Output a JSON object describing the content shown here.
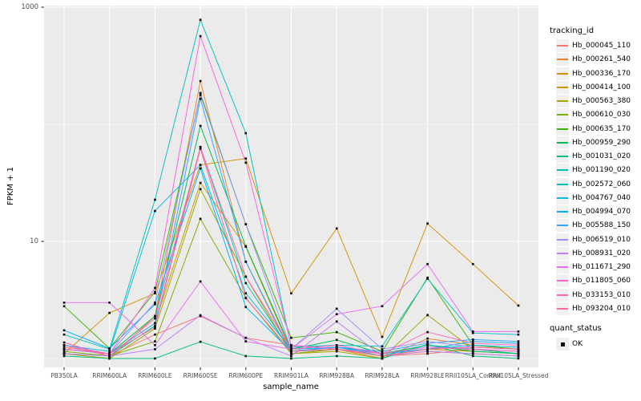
{
  "chart_data": {
    "type": "line",
    "title": "",
    "xlabel": "sample_name",
    "ylabel": "FPKM + 1",
    "y_scale": "log10",
    "ylim": [
      0.9,
      1000
    ],
    "grid": "on",
    "legend_position": "right",
    "point_marker": "small-black-square",
    "y_axis_ticks": [
      {
        "label": "1000",
        "value": 1000
      },
      {
        "label": "10",
        "value": 10
      }
    ],
    "minor_gridline_values": [
      100,
      1
    ],
    "categories": [
      "PB350LA",
      "RRIM600LA",
      "RRIM600LE",
      "RRIM600SE",
      "RRIM600PE",
      "RRIM901LA",
      "RRIM928BA",
      "RRIM928LA",
      "RRIM928LE",
      "RRII105LA_Control",
      "RRII105LA_Stressed"
    ],
    "series": [
      {
        "name": "Hb_000045_110",
        "color": "#F8766D",
        "values": [
          1.3,
          1.05,
          1.6,
          2.3,
          1.5,
          1.3,
          1.2,
          1.05,
          1.1,
          1.2,
          1.15
        ]
      },
      {
        "name": "Hb_000261_540",
        "color": "#EA8331",
        "values": [
          1.1,
          1.0,
          2.3,
          234,
          6.7,
          1.1,
          1.2,
          1.0,
          1.48,
          1.3,
          1.2
        ]
      },
      {
        "name": "Hb_000336_170",
        "color": "#D89000",
        "values": [
          1.1,
          2.45,
          3.6,
          45,
          51,
          3.6,
          12.9,
          1.53,
          14.2,
          6.4,
          2.83
        ]
      },
      {
        "name": "Hb_000414_100",
        "color": "#C59900",
        "values": [
          1.2,
          1.1,
          2.0,
          31.6,
          9.0,
          1.15,
          1.2,
          1.05,
          1.2,
          1.15,
          1.1
        ]
      },
      {
        "name": "Hb_000563_380",
        "color": "#A3A500",
        "values": [
          1.1,
          1.0,
          1.8,
          28,
          5.0,
          1.1,
          1.15,
          1.0,
          2.35,
          1.2,
          1.1
        ]
      },
      {
        "name": "Hb_000610_030",
        "color": "#7CAE00",
        "values": [
          1.15,
          1.05,
          1.4,
          15.6,
          3.3,
          1.1,
          1.2,
          1.05,
          1.15,
          1.1,
          1.05
        ]
      },
      {
        "name": "Hb_000635_170",
        "color": "#39B600",
        "values": [
          2.8,
          1.22,
          3.7,
          178,
          14,
          1.5,
          1.68,
          1.15,
          4.9,
          1.3,
          1.2
        ]
      },
      {
        "name": "Hb_000959_290",
        "color": "#00BB4E",
        "values": [
          1.2,
          1.1,
          2.3,
          97,
          9.1,
          1.2,
          1.44,
          1.1,
          1.3,
          1.15,
          1.1
        ]
      },
      {
        "name": "Hb_001031_020",
        "color": "#00BF7D",
        "values": [
          1.05,
          1.0,
          1.0,
          1.39,
          1.05,
          1.0,
          1.05,
          1.0,
          1.32,
          1.05,
          1.0
        ]
      },
      {
        "name": "Hb_001190_020",
        "color": "#00C1A3",
        "values": [
          1.1,
          1.05,
          1.9,
          64,
          4.4,
          1.15,
          1.25,
          1.05,
          1.3,
          1.2,
          1.1
        ]
      },
      {
        "name": "Hb_002572_060",
        "color": "#00BFC4",
        "values": [
          1.6,
          1.2,
          22.7,
          780,
          84,
          1.25,
          1.3,
          1.27,
          4.8,
          1.65,
          1.6
        ]
      },
      {
        "name": "Hb_004767_040",
        "color": "#00BAE0",
        "values": [
          1.3,
          1.15,
          18.2,
          45,
          3.6,
          1.2,
          1.25,
          1.1,
          1.2,
          1.3,
          1.25
        ]
      },
      {
        "name": "Hb_004994_070",
        "color": "#00B0F6",
        "values": [
          1.74,
          1.22,
          2.9,
          42,
          2.75,
          1.15,
          1.25,
          1.1,
          1.2,
          1.4,
          1.35
        ]
      },
      {
        "name": "Hb_005588_150",
        "color": "#35A2FF",
        "values": [
          1.2,
          1.1,
          2.0,
          165,
          6.7,
          1.15,
          1.25,
          1.15,
          1.35,
          1.45,
          1.4
        ]
      },
      {
        "name": "Hb_006519_010",
        "color": "#9590FF",
        "values": [
          1.3,
          1.1,
          3.0,
          185,
          14,
          1.2,
          2.66,
          1.2,
          1.4,
          1.25,
          1.2
        ]
      },
      {
        "name": "Hb_008931_020",
        "color": "#C77CFF",
        "values": [
          1.1,
          1.05,
          1.2,
          2.34,
          1.5,
          1.05,
          2.07,
          1.05,
          1.15,
          1.1,
          1.05
        ]
      },
      {
        "name": "Hb_011671_290",
        "color": "#E76BF3",
        "values": [
          3.0,
          3.0,
          1.3,
          4.55,
          1.4,
          1.2,
          2.39,
          2.8,
          6.4,
          1.7,
          1.7
        ]
      },
      {
        "name": "Hb_011805_060",
        "color": "#FA62DB",
        "values": [
          1.2,
          1.1,
          4.0,
          566,
          47,
          1.3,
          1.2,
          1.1,
          1.25,
          1.2,
          1.15
        ]
      },
      {
        "name": "Hb_033153_010",
        "color": "#FF62BC",
        "values": [
          1.37,
          1.05,
          2.2,
          64,
          5.0,
          1.2,
          1.3,
          1.1,
          1.68,
          1.35,
          1.3
        ]
      },
      {
        "name": "Hb_093204_010",
        "color": "#FF6A98",
        "values": [
          1.25,
          1.1,
          1.85,
          62,
          3.27,
          1.15,
          1.2,
          1.05,
          1.2,
          1.25,
          1.2
        ]
      }
    ]
  },
  "legend": {
    "tracking_title": "tracking_id",
    "quant_title": "quant_status",
    "quant_items": [
      {
        "label": "OK",
        "marker": "black-square"
      }
    ]
  },
  "style": {
    "panel_bg": "#EBEBEB",
    "gridline_color": "#FFFFFF",
    "tick_color": "#333333",
    "tick_label_color": "#4d4d4d",
    "point_color": "#111111",
    "legend_key_bg": "#f0f0f0"
  }
}
